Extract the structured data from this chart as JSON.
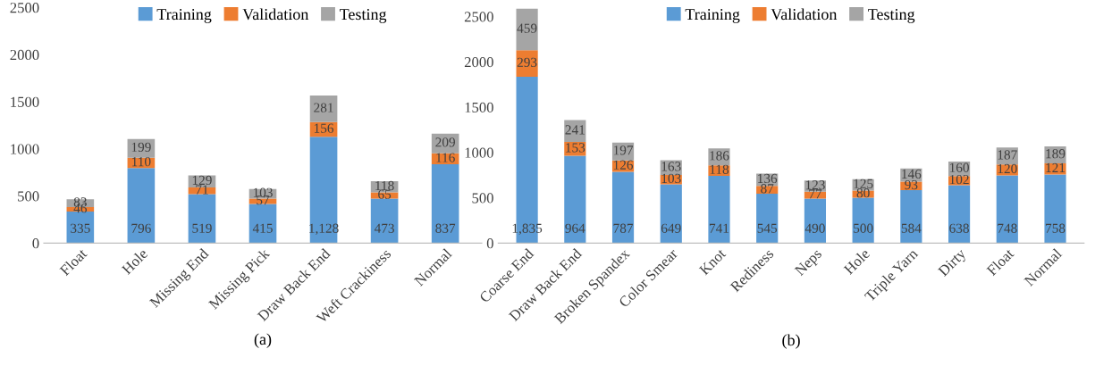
{
  "chart_data": [
    {
      "type": "bar",
      "stacked": true,
      "xlabel": "(a)",
      "categories": [
        "Float",
        "Hole",
        "Missing End",
        "Missing Pick",
        "Draw Back End",
        "Weft Crackiness",
        "Normal"
      ],
      "ylim": [
        0,
        2500
      ],
      "yticks": [
        0,
        500,
        1000,
        1500,
        2000,
        2500
      ],
      "grid": false,
      "legend": "top",
      "series": [
        {
          "name": "Training",
          "color": "#5b9bd5",
          "values": [
            335,
            796,
            519,
            415,
            1128,
            473,
            837
          ],
          "value_labels": [
            "335",
            "796",
            "519",
            "415",
            "1,128",
            "473",
            "837"
          ]
        },
        {
          "name": "Validation",
          "color": "#ed7d31",
          "values": [
            46,
            110,
            71,
            57,
            156,
            65,
            116
          ],
          "value_labels": [
            "46",
            "110",
            "71",
            "57",
            "156",
            "65",
            "116"
          ]
        },
        {
          "name": "Testing",
          "color": "#a5a5a5",
          "values": [
            83,
            199,
            129,
            103,
            281,
            118,
            209
          ],
          "value_labels": [
            "83",
            "199",
            "129",
            "103",
            "281",
            "118",
            "209"
          ]
        }
      ]
    },
    {
      "type": "bar",
      "stacked": true,
      "xlabel": "(b)",
      "categories": [
        "Coarse End",
        "Draw Back End",
        "Broken Spandex",
        "Color Smear",
        "Knot",
        "Rediness",
        "Neps",
        "Hole",
        "Triple Yarn",
        "Dirty",
        "Float",
        "Normal"
      ],
      "ylim": [
        0,
        2600
      ],
      "yticks": [
        0,
        500,
        1000,
        1500,
        2000,
        2500
      ],
      "grid": false,
      "legend": "top",
      "series": [
        {
          "name": "Training",
          "color": "#5b9bd5",
          "values": [
            1835,
            964,
            787,
            649,
            741,
            545,
            490,
            500,
            584,
            638,
            748,
            758
          ],
          "value_labels": [
            "1,835",
            "964",
            "787",
            "649",
            "741",
            "545",
            "490",
            "500",
            "584",
            "638",
            "748",
            "758"
          ]
        },
        {
          "name": "Validation",
          "color": "#ed7d31",
          "values": [
            293,
            153,
            126,
            103,
            118,
            87,
            77,
            80,
            93,
            102,
            120,
            121
          ],
          "value_labels": [
            "293",
            "153",
            "126",
            "103",
            "118",
            "87",
            "77",
            "80",
            "93",
            "102",
            "120",
            "121"
          ]
        },
        {
          "name": "Testing",
          "color": "#a5a5a5",
          "values": [
            459,
            241,
            197,
            163,
            186,
            136,
            123,
            125,
            146,
            160,
            187,
            189
          ],
          "value_labels": [
            "459",
            "241",
            "197",
            "163",
            "186",
            "136",
            "123",
            "125",
            "146",
            "160",
            "187",
            "189"
          ]
        }
      ]
    }
  ]
}
